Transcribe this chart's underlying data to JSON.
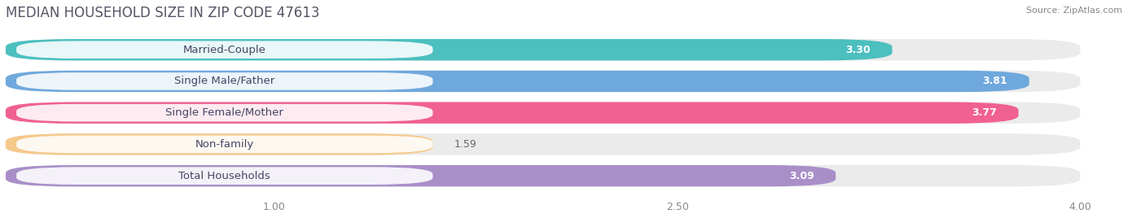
{
  "title": "MEDIAN HOUSEHOLD SIZE IN ZIP CODE 47613",
  "source": "Source: ZipAtlas.com",
  "categories": [
    "Married-Couple",
    "Single Male/Father",
    "Single Female/Mother",
    "Non-family",
    "Total Households"
  ],
  "values": [
    3.3,
    3.81,
    3.77,
    1.59,
    3.09
  ],
  "bar_colors": [
    "#4CBFBF",
    "#6FA8DC",
    "#F06090",
    "#F5C98A",
    "#A98FC8"
  ],
  "xlim": [
    0,
    4.22
  ],
  "xmin": 0,
  "xmax": 4.0,
  "xticks": [
    1.0,
    2.5,
    4.0
  ],
  "xtick_labels": [
    "1.00",
    "2.50",
    "4.00"
  ],
  "background_color": "#ffffff",
  "bar_bg_color": "#ebebeb",
  "title_fontsize": 12,
  "label_fontsize": 9.5,
  "value_fontsize": 9
}
